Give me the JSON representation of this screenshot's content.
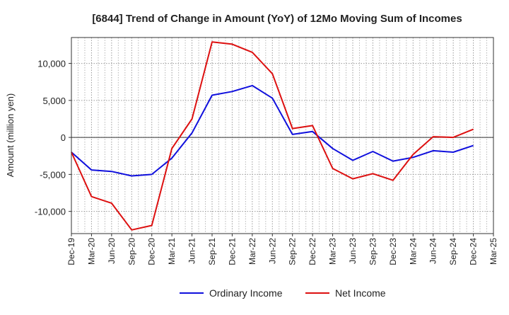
{
  "chart_data": {
    "type": "line",
    "title": "[6844]  Trend of Change in Amount (YoY) of 12Mo Moving Sum of Incomes",
    "ylabel": "Amount (million yen)",
    "xlabel": "",
    "ylim": [
      -13000,
      13500
    ],
    "yticks": [
      -10000,
      -5000,
      0,
      5000,
      10000
    ],
    "ytick_labels": [
      "-10,000",
      "-5,000",
      "0",
      "5,000",
      "10,000"
    ],
    "categories": [
      "Dec-19",
      "Mar-20",
      "Jun-20",
      "Sep-20",
      "Dec-20",
      "Mar-21",
      "Jun-21",
      "Sep-21",
      "Dec-21",
      "Mar-22",
      "Jun-22",
      "Sep-22",
      "Dec-22",
      "Mar-23",
      "Jun-23",
      "Sep-23",
      "Dec-23",
      "Mar-24",
      "Jun-24",
      "Sep-24",
      "Dec-24",
      "Mar-25"
    ],
    "grid": true,
    "legend_position": "bottom-center",
    "series": [
      {
        "name": "Ordinary Income",
        "color": "#1010dd",
        "values": [
          -2000,
          -4400,
          -4600,
          -5200,
          -5000,
          -2800,
          600,
          5700,
          6200,
          7000,
          5300,
          400,
          800,
          -1500,
          -3100,
          -1900,
          -3200,
          -2700,
          -1800,
          -2000,
          -1100,
          null
        ]
      },
      {
        "name": "Net Income",
        "color": "#dd1010",
        "values": [
          -2000,
          -8000,
          -8900,
          -12500,
          -11900,
          -1500,
          2500,
          12900,
          12600,
          11500,
          8600,
          1200,
          1600,
          -4200,
          -5600,
          -4900,
          -5800,
          -2300,
          100,
          0,
          1100,
          null
        ]
      }
    ]
  }
}
